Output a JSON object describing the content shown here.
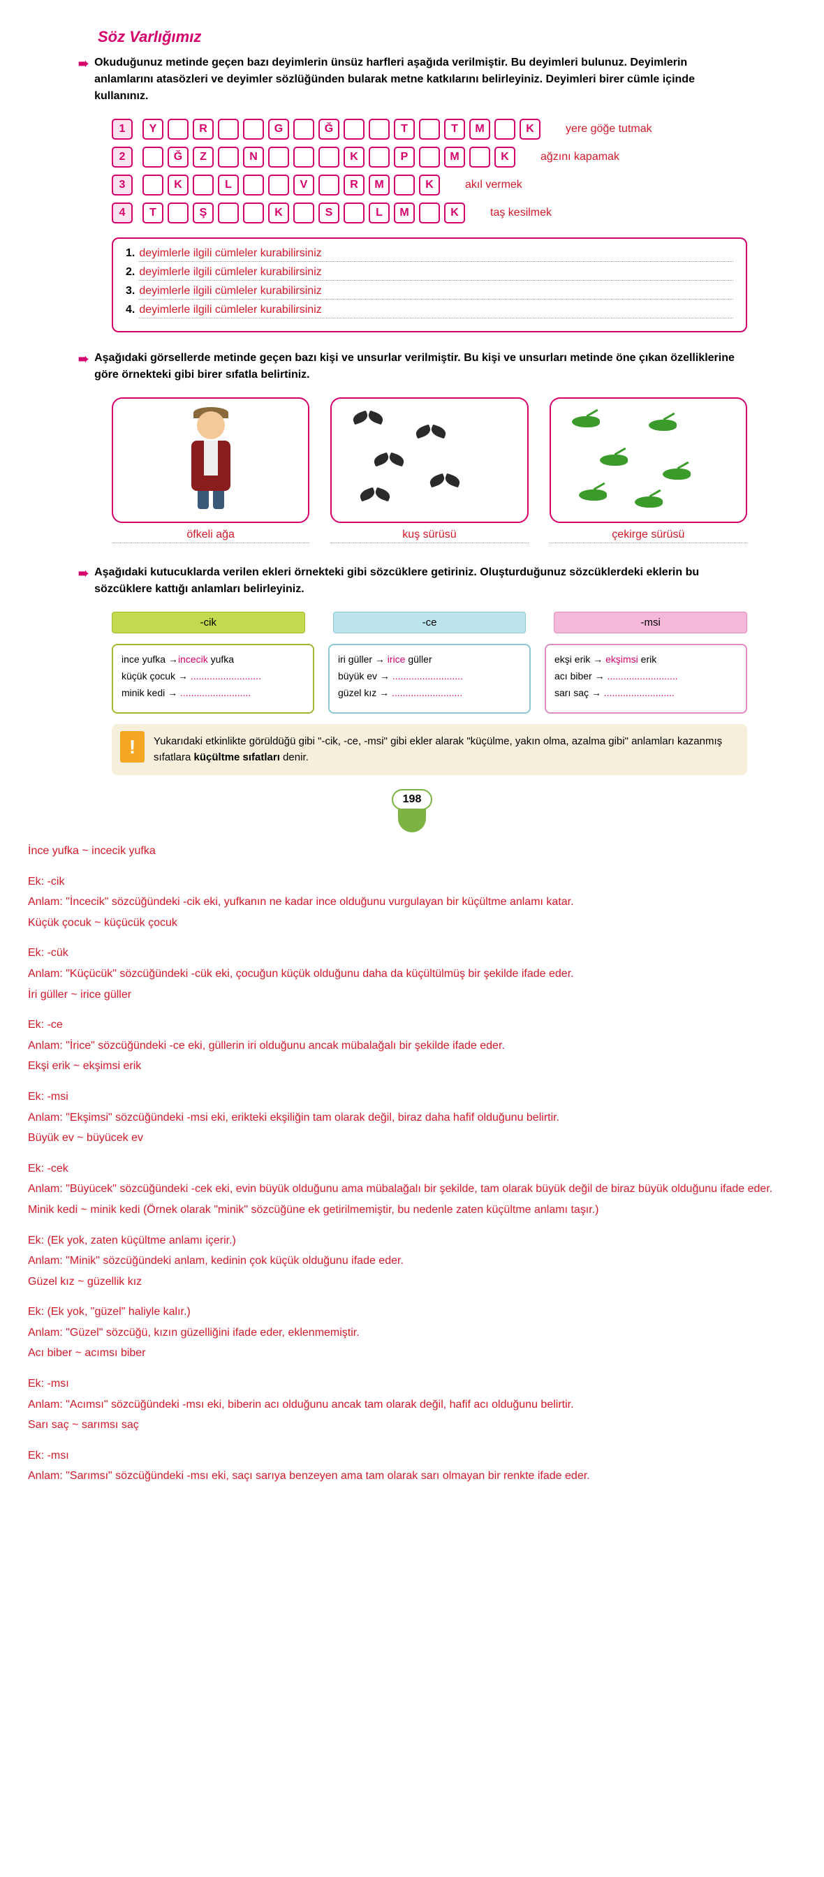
{
  "title": "Söz Varlığımız",
  "instruction1": "Okuduğunuz metinde geçen bazı deyimlerin ünsüz harfleri aşağıda verilmiştir. Bu deyimleri bulunuz. Deyimlerin anlamlarını atasözleri ve deyimler sözlüğünden bularak metne katkılarını belirleyiniz. Deyimleri birer cümle içinde kullanınız.",
  "rows": [
    {
      "n": "1",
      "letters": [
        "Y",
        "",
        "R",
        "",
        "",
        "G",
        "",
        "Ğ",
        "",
        "",
        "T",
        "",
        "T",
        "M",
        "",
        "K"
      ],
      "answer": "yere göğe tutmak"
    },
    {
      "n": "2",
      "letters": [
        "",
        "Ğ",
        "Z",
        "",
        "N",
        "",
        "",
        "",
        "K",
        "",
        "P",
        "",
        "M",
        "",
        "K"
      ],
      "answer": "ağzını kapamak"
    },
    {
      "n": "3",
      "letters": [
        "",
        "K",
        "",
        "L",
        "",
        "",
        "V",
        "",
        "R",
        "M",
        "",
        "K"
      ],
      "answer": "akıl vermek"
    },
    {
      "n": "4",
      "letters": [
        "T",
        "",
        "Ş",
        "",
        "",
        "K",
        "",
        "S",
        "",
        "L",
        "M",
        "",
        "K"
      ],
      "answer": "taş kesilmek"
    }
  ],
  "sentences": [
    "deyimlerle ilgili cümleler kurabilirsiniz",
    "deyimlerle ilgili cümleler kurabilirsiniz",
    "deyimlerle ilgili cümleler kurabilirsiniz",
    "deyimlerle ilgili cümleler kurabilirsiniz"
  ],
  "instruction2": "Aşağıdaki görsellerde metinde geçen bazı kişi ve unsurlar verilmiştir. Bu kişi ve unsurları metinde öne çıkan özelliklerine göre örnekteki gibi birer sıfatla belirtiniz.",
  "image_labels": [
    "öfkeli ağa",
    "kuş sürüsü",
    "çekirge sürüsü"
  ],
  "instruction3": "Aşağıdaki kutucuklarda verilen ekleri örnekteki gibi sözcüklere getiriniz. Oluşturduğunuz sözcüklerdeki eklerin bu sözcüklere kattığı anlamları belirleyiniz.",
  "suffixes": {
    "cik": "-cik",
    "ce": "-ce",
    "msi": "-msi"
  },
  "col_cik": [
    {
      "base": "ince yufka →",
      "ans": "incecik",
      "tail": " yufka"
    },
    {
      "base": "küçük çocuk → ",
      "ans": "..........................",
      "tail": ""
    },
    {
      "base": "minik kedi → ",
      "ans": "..........................",
      "tail": ""
    }
  ],
  "col_ce": [
    {
      "base": "iri güller → ",
      "ans": "irice",
      "tail": " güller"
    },
    {
      "base": "büyük ev → ",
      "ans": "..........................",
      "tail": ""
    },
    {
      "base": "güzel kız → ",
      "ans": "..........................",
      "tail": ""
    }
  ],
  "col_msi": [
    {
      "base": "ekşi erik → ",
      "ans": "ekşimsi",
      "tail": " erik"
    },
    {
      "base": "acı biber → ",
      "ans": "..........................",
      "tail": ""
    },
    {
      "base": "sarı saç → ",
      "ans": "..........................",
      "tail": ""
    }
  ],
  "info_text_1": "Yukarıdaki etkinlikte görüldüğü gibi \"-cik, -ce, -msi\" gibi ekler alarak \"küçülme, yakın olma, azalma gibi\" anlamları kazanmış sıfatlara ",
  "info_bold": "küçültme sıfatları",
  "info_text_2": " denir.",
  "page_number": "198",
  "bottom": [
    "İnce yufka ~ incecik yufka",
    "",
    "Ek: -cik",
    "Anlam: \"İncecik\" sözcüğündeki -cik eki, yufkanın ne kadar ince olduğunu vurgulayan bir küçültme anlamı katar.",
    "Küçük çocuk ~ küçücük çocuk",
    "",
    "Ek: -cük",
    "Anlam: \"Küçücük\" sözcüğündeki -cük eki, çocuğun küçük olduğunu daha da küçültülmüş bir şekilde ifade eder.",
    "İri güller ~ irice güller",
    "",
    "Ek: -ce",
    "Anlam: \"İrice\" sözcüğündeki -ce eki, güllerin iri olduğunu ancak mübalağalı bir şekilde ifade eder.",
    "Ekşi erik ~ ekşimsi erik",
    "",
    "Ek: -msi",
    "Anlam: \"Ekşimsi\" sözcüğündeki -msi eki, erikteki ekşiliğin tam olarak değil, biraz daha hafif olduğunu belirtir.",
    "Büyük ev ~ büyücek ev",
    "",
    "Ek: -cek",
    "Anlam: \"Büyücek\" sözcüğündeki -cek eki, evin büyük olduğunu ama mübalağalı bir şekilde, tam olarak büyük değil de biraz büyük olduğunu ifade eder.",
    "Minik kedi ~ minik kedi (Örnek olarak \"minik\" sözcüğüne ek getirilmemiştir, bu nedenle zaten küçültme anlamı taşır.)",
    "",
    "Ek: (Ek yok, zaten küçültme anlamı içerir.)",
    "Anlam: \"Minik\" sözcüğündeki anlam, kedinin çok küçük olduğunu ifade eder.",
    "Güzel kız ~ güzellik kız",
    "",
    "Ek: (Ek yok, \"güzel\" haliyle kalır.)",
    "Anlam: \"Güzel\" sözcüğü, kızın güzelliğini ifade eder, eklenmemiştir.",
    "Acı biber ~ acımsı biber",
    "",
    "Ek: -msı",
    "Anlam: \"Acımsı\" sözcüğündeki -msı eki, biberin acı olduğunu ancak tam olarak değil, hafif acı olduğunu belirtir.",
    "Sarı saç ~ sarımsı saç",
    "",
    "Ek: -msı",
    "Anlam: \"Sarımsı\" sözcüğündeki -msı eki, saçı sarıya benzeyen ama tam olarak sarı olmayan bir renkte ifade eder."
  ]
}
